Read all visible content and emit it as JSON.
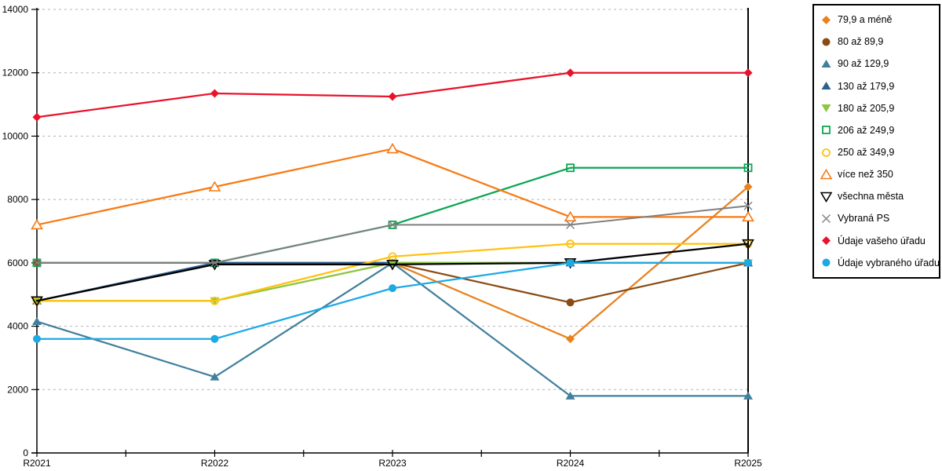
{
  "chart_data": {
    "type": "line",
    "title": "",
    "xlabel": "",
    "ylabel": "",
    "x_categories": [
      "R2021",
      "R2022",
      "R2023",
      "R2024",
      "R2025"
    ],
    "y_ticks": [
      0,
      2000,
      4000,
      6000,
      8000,
      10000,
      12000,
      14000
    ],
    "ylim": [
      0,
      14000
    ],
    "grid": "horizontal-dashed",
    "legend_position": "right-box",
    "axis_color": "#000000",
    "gridline_color": "#b3b3b3",
    "series": [
      {
        "name": "79,9 a méně",
        "color": "#E8821E",
        "marker": "diamond",
        "marker_icon": "diamond-filled-icon",
        "values": [
          6000,
          6000,
          6000,
          3600,
          8400
        ]
      },
      {
        "name": "80 až 89,9",
        "color": "#8A4B13",
        "marker": "circle",
        "marker_icon": "circle-filled-icon",
        "values": [
          6000,
          6000,
          6000,
          4750,
          6000
        ]
      },
      {
        "name": "90 až 129,9",
        "color": "#41809C",
        "marker": "triangle-up",
        "marker_icon": "triangle-up-filled-icon",
        "values": [
          4150,
          2400,
          6000,
          1800,
          1800
        ]
      },
      {
        "name": "130 až 179,9",
        "color": "#2F5F8F",
        "marker": "triangle-up",
        "marker_icon": "triangle-up-filled-icon",
        "values": [
          4800,
          6000,
          6000,
          6000,
          6000
        ]
      },
      {
        "name": "180 až 205,9",
        "color": "#8DC63F",
        "marker": "triangle-down",
        "marker_icon": "triangle-down-filled-icon",
        "values": [
          4800,
          4800,
          6000,
          6000,
          6000
        ]
      },
      {
        "name": "206 až 249,9",
        "color": "#0BA653",
        "marker": "square-open",
        "marker_icon": "square-open-icon",
        "values": [
          6000,
          6000,
          7200,
          9000,
          9000
        ]
      },
      {
        "name": "250 až 349,9",
        "color": "#FFC20E",
        "marker": "circle-open",
        "marker_icon": "circle-open-icon",
        "values": [
          4800,
          4800,
          6200,
          6600,
          6600
        ]
      },
      {
        "name": "více než 350",
        "color": "#F87A14",
        "marker": "triangle-up-open",
        "marker_icon": "triangle-up-open-icon",
        "values": [
          7200,
          8400,
          9600,
          7450,
          7450
        ]
      },
      {
        "name": "všechna města",
        "color": "#000000",
        "marker": "triangle-down-open",
        "marker_icon": "triangle-down-open-icon",
        "values": [
          4800,
          5950,
          5950,
          6000,
          6600
        ]
      },
      {
        "name": "Vybraná PS",
        "color": "#808080",
        "marker": "x",
        "marker_icon": "x-cross-icon",
        "values": [
          6000,
          6000,
          7200,
          7200,
          7800
        ]
      },
      {
        "name": "Údaje vašeho úřadu",
        "color": "#E8132B",
        "marker": "diamond",
        "marker_icon": "diamond-filled-icon",
        "values": [
          10600,
          11350,
          11250,
          12000,
          12000
        ]
      },
      {
        "name": "Údaje vybraného úřadu",
        "color": "#1CA9E4",
        "marker": "circle",
        "marker_icon": "circle-filled-icon",
        "values": [
          3600,
          3600,
          5200,
          6000,
          6000
        ]
      }
    ]
  }
}
